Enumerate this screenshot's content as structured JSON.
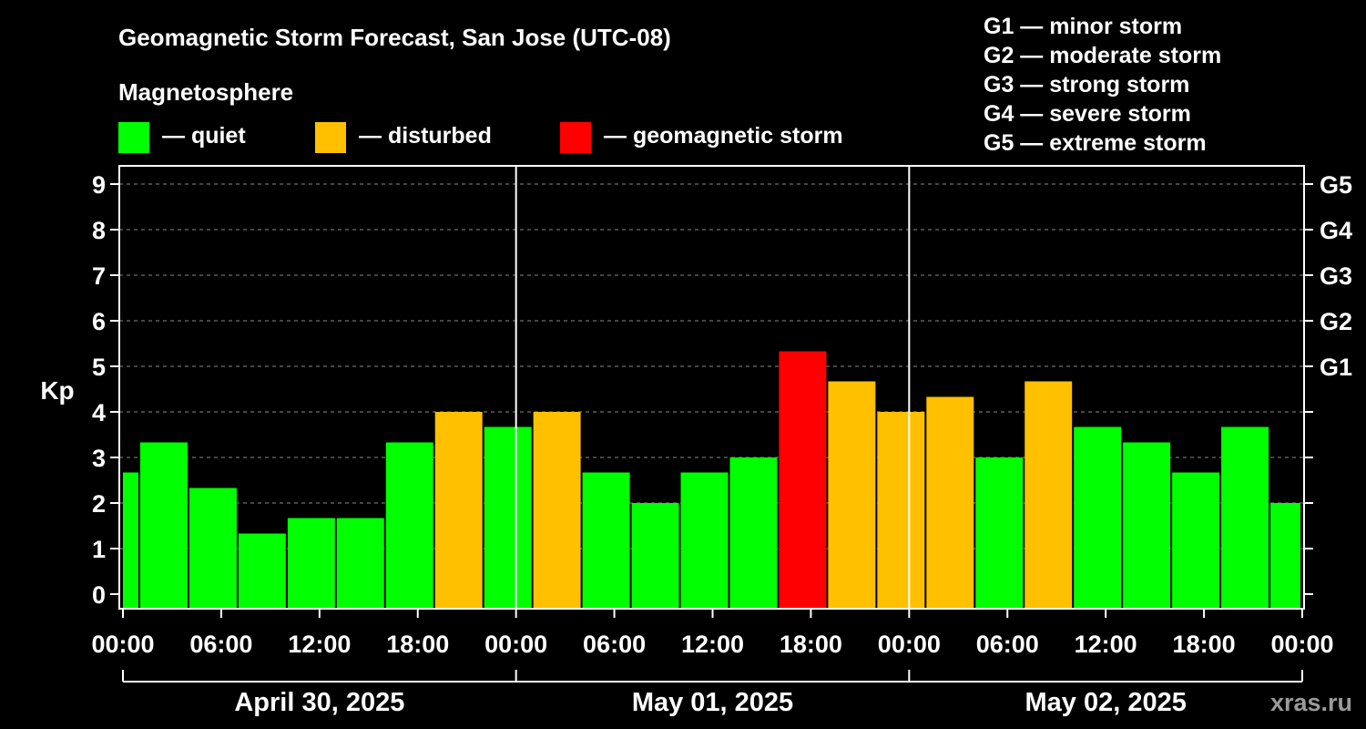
{
  "chart_data": {
    "type": "bar",
    "title": "Geomagnetic Storm Forecast, San Jose (UTC-08)",
    "subtitle": "Magnetosphere",
    "ylabel": "Kp",
    "xlabel": "",
    "ylim": [
      0,
      9
    ],
    "yticks": [
      "0",
      "1",
      "2",
      "3",
      "4",
      "5",
      "6",
      "7",
      "8",
      "9"
    ],
    "grid": true,
    "legend": [
      {
        "label": "— quiet",
        "color": "#00ff00"
      },
      {
        "label": "— disturbed",
        "color": "#ffc000"
      },
      {
        "label": "— geomagnetic storm",
        "color": "#ff0000"
      }
    ],
    "storm_scale": [
      "G1 — minor storm",
      "G2 — moderate storm",
      "G3 — strong storm",
      "G4 — severe storm",
      "G5 — extreme storm"
    ],
    "right_axis": [
      {
        "kp": 5,
        "label": "G1"
      },
      {
        "kp": 6,
        "label": "G2"
      },
      {
        "kp": 7,
        "label": "G3"
      },
      {
        "kp": 8,
        "label": "G4"
      },
      {
        "kp": 9,
        "label": "G5"
      }
    ],
    "x_range_hours": [
      0,
      72
    ],
    "x_ticks": [
      {
        "hour": 0,
        "label": "00:00"
      },
      {
        "hour": 6,
        "label": "06:00"
      },
      {
        "hour": 12,
        "label": "12:00"
      },
      {
        "hour": 18,
        "label": "18:00"
      },
      {
        "hour": 24,
        "label": "00:00"
      },
      {
        "hour": 30,
        "label": "06:00"
      },
      {
        "hour": 36,
        "label": "12:00"
      },
      {
        "hour": 42,
        "label": "18:00"
      },
      {
        "hour": 48,
        "label": "00:00"
      },
      {
        "hour": 54,
        "label": "06:00"
      },
      {
        "hour": 60,
        "label": "12:00"
      },
      {
        "hour": 66,
        "label": "18:00"
      },
      {
        "hour": 72,
        "label": "00:00"
      }
    ],
    "days": [
      {
        "label": "April 30, 2025",
        "start": 0,
        "end": 24
      },
      {
        "label": "May 01, 2025",
        "start": 24,
        "end": 48
      },
      {
        "label": "May 02, 2025",
        "start": 48,
        "end": 72
      }
    ],
    "series": [
      {
        "name": "Kp",
        "bars": [
          {
            "start": -1,
            "end": 1,
            "kp": 2.67,
            "status": "quiet"
          },
          {
            "start": 1,
            "end": 4,
            "kp": 3.33,
            "status": "quiet"
          },
          {
            "start": 4,
            "end": 7,
            "kp": 2.33,
            "status": "quiet"
          },
          {
            "start": 7,
            "end": 10,
            "kp": 1.33,
            "status": "quiet"
          },
          {
            "start": 10,
            "end": 13,
            "kp": 1.67,
            "status": "quiet"
          },
          {
            "start": 13,
            "end": 16,
            "kp": 1.67,
            "status": "quiet"
          },
          {
            "start": 16,
            "end": 19,
            "kp": 3.33,
            "status": "quiet"
          },
          {
            "start": 19,
            "end": 22,
            "kp": 4.0,
            "status": "disturbed"
          },
          {
            "start": 22,
            "end": 25,
            "kp": 3.67,
            "status": "quiet"
          },
          {
            "start": 25,
            "end": 28,
            "kp": 4.0,
            "status": "disturbed"
          },
          {
            "start": 28,
            "end": 31,
            "kp": 2.67,
            "status": "quiet"
          },
          {
            "start": 31,
            "end": 34,
            "kp": 2.0,
            "status": "quiet"
          },
          {
            "start": 34,
            "end": 37,
            "kp": 2.67,
            "status": "quiet"
          },
          {
            "start": 37,
            "end": 40,
            "kp": 3.0,
            "status": "quiet"
          },
          {
            "start": 40,
            "end": 43,
            "kp": 5.33,
            "status": "storm"
          },
          {
            "start": 43,
            "end": 46,
            "kp": 4.67,
            "status": "disturbed"
          },
          {
            "start": 46,
            "end": 49,
            "kp": 4.0,
            "status": "disturbed"
          },
          {
            "start": 49,
            "end": 52,
            "kp": 4.33,
            "status": "disturbed"
          },
          {
            "start": 52,
            "end": 55,
            "kp": 3.0,
            "status": "quiet"
          },
          {
            "start": 55,
            "end": 58,
            "kp": 4.67,
            "status": "disturbed"
          },
          {
            "start": 58,
            "end": 61,
            "kp": 3.67,
            "status": "quiet"
          },
          {
            "start": 61,
            "end": 64,
            "kp": 3.33,
            "status": "quiet"
          },
          {
            "start": 64,
            "end": 67,
            "kp": 2.67,
            "status": "quiet"
          },
          {
            "start": 67,
            "end": 70,
            "kp": 3.67,
            "status": "quiet"
          },
          {
            "start": 70,
            "end": 73,
            "kp": 2.0,
            "status": "quiet"
          }
        ]
      }
    ],
    "status_colors": {
      "quiet": "#00ff00",
      "disturbed": "#ffc000",
      "storm": "#ff0000"
    },
    "watermark": "xras.ru"
  }
}
